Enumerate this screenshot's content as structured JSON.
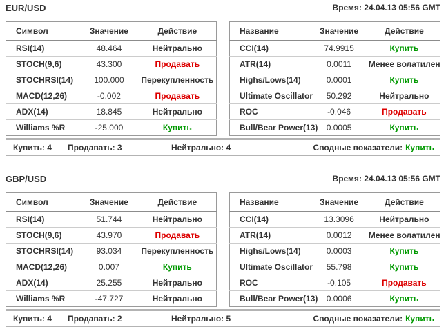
{
  "colors": {
    "buy": "#009900",
    "sell": "#dd0000",
    "text": "#333333"
  },
  "sections": [
    {
      "pair": "EUR/USD",
      "time": "Время: 24.04.13 05:56 GMT",
      "left_table": {
        "headers": [
          "Символ",
          "Значение",
          "Действие"
        ],
        "rows": [
          {
            "name": "RSI(14)",
            "value": "48.464",
            "action": "Нейтрально",
            "action_type": "neutral"
          },
          {
            "name": "STOCH(9,6)",
            "value": "43.300",
            "action": "Продавать",
            "action_type": "sell"
          },
          {
            "name": "STOCHRSI(14)",
            "value": "100.000",
            "action": "Перекупленность",
            "action_type": "overbought"
          },
          {
            "name": "MACD(12,26)",
            "value": "-0.002",
            "action": "Продавать",
            "action_type": "sell"
          },
          {
            "name": "ADX(14)",
            "value": "18.845",
            "action": "Нейтрально",
            "action_type": "neutral"
          },
          {
            "name": "Williams %R",
            "value": "-25.000",
            "action": "Купить",
            "action_type": "buy"
          }
        ]
      },
      "right_table": {
        "headers": [
          "Название",
          "Значение",
          "Действие"
        ],
        "rows": [
          {
            "name": "CCI(14)",
            "value": "74.9915",
            "action": "Купить",
            "action_type": "buy"
          },
          {
            "name": "ATR(14)",
            "value": "0.0011",
            "action": "Менее волатилен",
            "action_type": "less-volatile"
          },
          {
            "name": "Highs/Lows(14)",
            "value": "0.0001",
            "action": "Купить",
            "action_type": "buy"
          },
          {
            "name": "Ultimate Oscillator",
            "value": "50.292",
            "action": "Нейтрально",
            "action_type": "neutral"
          },
          {
            "name": "ROC",
            "value": "-0.046",
            "action": "Продавать",
            "action_type": "sell"
          },
          {
            "name": "Bull/Bear Power(13)",
            "value": "0.0005",
            "action": "Купить",
            "action_type": "buy"
          }
        ]
      },
      "summary": {
        "buy": "Купить: 4",
        "sell": "Продавать: 3",
        "neutral": "Нейтрально: 4",
        "overall_label": "Сводные показатели:",
        "overall_value": "Купить",
        "overall_type": "buy"
      }
    },
    {
      "pair": "GBP/USD",
      "time": "Время: 24.04.13 05:56 GMT",
      "left_table": {
        "headers": [
          "Символ",
          "Значение",
          "Действие"
        ],
        "rows": [
          {
            "name": "RSI(14)",
            "value": "51.744",
            "action": "Нейтрально",
            "action_type": "neutral"
          },
          {
            "name": "STOCH(9,6)",
            "value": "43.970",
            "action": "Продавать",
            "action_type": "sell"
          },
          {
            "name": "STOCHRSI(14)",
            "value": "93.034",
            "action": "Перекупленность",
            "action_type": "overbought"
          },
          {
            "name": "MACD(12,26)",
            "value": "0.007",
            "action": "Купить",
            "action_type": "buy"
          },
          {
            "name": "ADX(14)",
            "value": "25.255",
            "action": "Нейтрально",
            "action_type": "neutral"
          },
          {
            "name": "Williams %R",
            "value": "-47.727",
            "action": "Нейтрально",
            "action_type": "neutral"
          }
        ]
      },
      "right_table": {
        "headers": [
          "Название",
          "Значение",
          "Действие"
        ],
        "rows": [
          {
            "name": "CCI(14)",
            "value": "13.3096",
            "action": "Нейтрально",
            "action_type": "neutral"
          },
          {
            "name": "ATR(14)",
            "value": "0.0012",
            "action": "Менее волатилен",
            "action_type": "less-volatile"
          },
          {
            "name": "Highs/Lows(14)",
            "value": "0.0003",
            "action": "Купить",
            "action_type": "buy"
          },
          {
            "name": "Ultimate Oscillator",
            "value": "55.798",
            "action": "Купить",
            "action_type": "buy"
          },
          {
            "name": "ROC",
            "value": "-0.105",
            "action": "Продавать",
            "action_type": "sell"
          },
          {
            "name": "Bull/Bear Power(13)",
            "value": "0.0006",
            "action": "Купить",
            "action_type": "buy"
          }
        ]
      },
      "summary": {
        "buy": "Купить: 4",
        "sell": "Продавать: 2",
        "neutral": "Нейтрально: 5",
        "overall_label": "Сводные показатели:",
        "overall_value": "Купить",
        "overall_type": "buy"
      }
    }
  ]
}
